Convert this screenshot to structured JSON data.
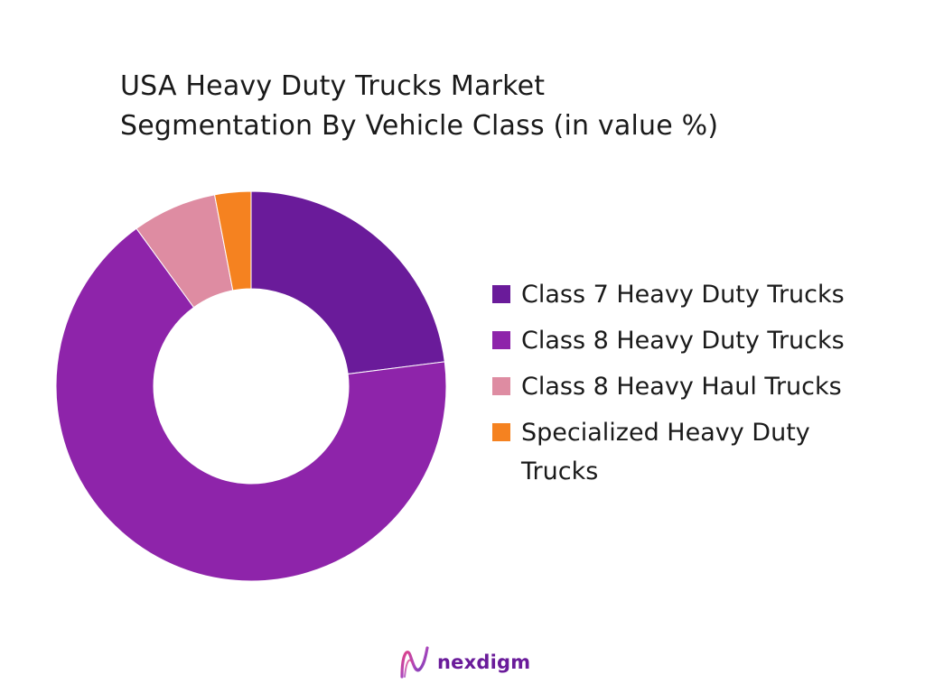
{
  "title_line1": "USA Heavy Duty Trucks Market",
  "title_line2": "Segmentation By Vehicle Class (in value %)",
  "brand": "nexdigm",
  "chart_data": {
    "type": "pie",
    "variant": "donut",
    "legend_position": "right",
    "slices": [
      {
        "label": "Class 7 Heavy Duty Trucks",
        "value": 23,
        "color": "#6a1b9a"
      },
      {
        "label": "Class 8 Heavy Duty Trucks",
        "value": 67,
        "color": "#8e24aa"
      },
      {
        "label": "Class 8 Heavy Haul Trucks",
        "value": 7,
        "color": "#de8ca2"
      },
      {
        "label": "Specialized Heavy Duty Trucks",
        "value": 3,
        "color": "#f58220"
      }
    ]
  }
}
